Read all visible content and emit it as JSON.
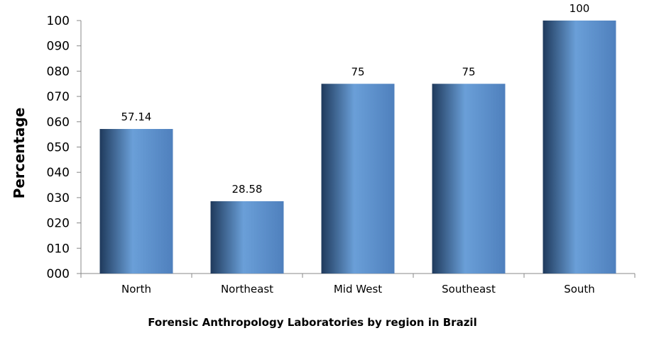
{
  "chart_data": {
    "type": "bar",
    "title": "",
    "xlabel": "Forensic Anthropology Laboratories by region in Brazil",
    "ylabel": "Percentage",
    "categories": [
      "North",
      "Northeast",
      "Mid West",
      "Southeast",
      "South"
    ],
    "values": [
      57.14,
      28.58,
      75,
      75,
      100
    ],
    "data_labels": [
      "57.14",
      "28.58",
      "75",
      "75",
      "100"
    ],
    "ylim": [
      0,
      100
    ],
    "yticks": [
      "000",
      "010",
      "020",
      "030",
      "040",
      "050",
      "060",
      "070",
      "080",
      "090",
      "100"
    ],
    "grid": false,
    "legend": "none",
    "bar_colors": {
      "dark": "#1f3a5c",
      "light": "#6a9fd8",
      "mid": "#4f80bd"
    },
    "axis_color": "#888888"
  }
}
